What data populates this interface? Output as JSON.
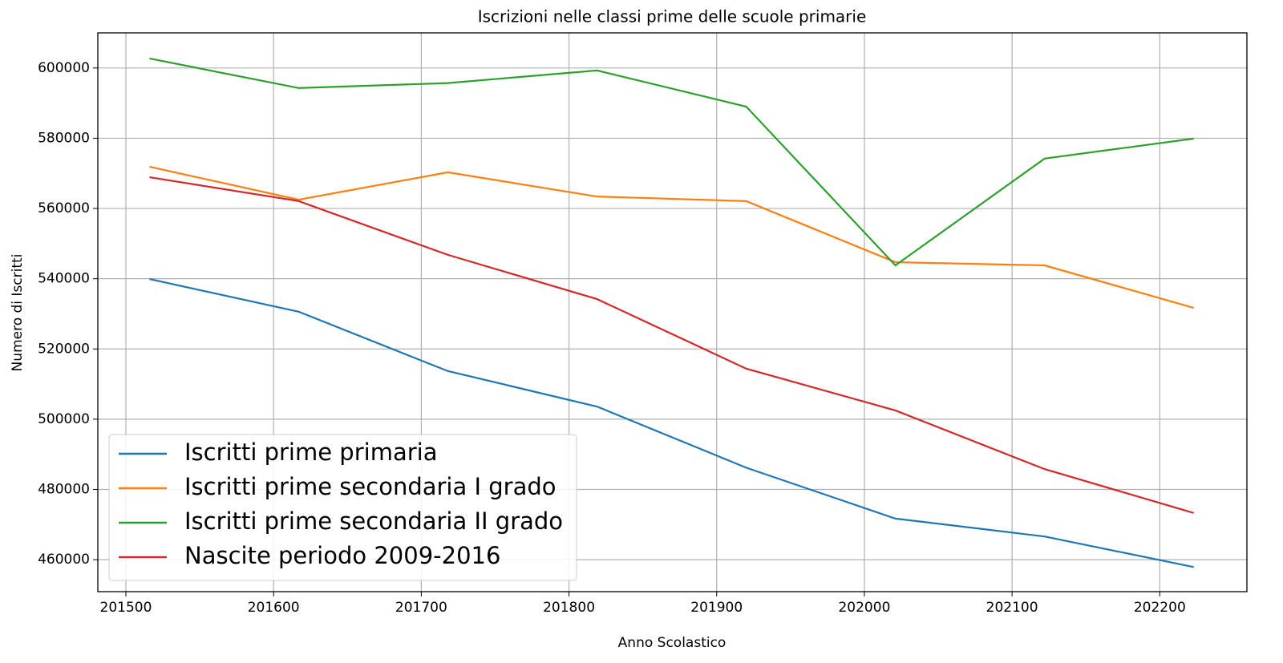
{
  "chart_data": {
    "type": "line",
    "title": "Iscrizioni nelle classi prime delle scuole primarie",
    "xlabel": "Anno Scolastico",
    "ylabel": "Numero di Iscritti",
    "x": [
      201516,
      201617,
      201718,
      201819,
      201920,
      202021,
      202122,
      202223
    ],
    "series": [
      {
        "name": "Iscritti prime primaria",
        "color": "#1f77b4",
        "values": [
          539900,
          530600,
          513700,
          503600,
          486200,
          471700,
          466600,
          457900
        ]
      },
      {
        "name": "Iscritti prime secondaria I grado",
        "color": "#ff7f0e",
        "values": [
          571900,
          562500,
          570300,
          563400,
          562100,
          544700,
          543800,
          531700
        ]
      },
      {
        "name": "Iscritti prime secondaria II grado",
        "color": "#2ca02c",
        "values": [
          602700,
          594300,
          595700,
          599300,
          589000,
          543800,
          574200,
          579900
        ]
      },
      {
        "name": "Nascite periodo 2009-2016",
        "color": "#d62728",
        "values": [
          568900,
          562100,
          546800,
          534200,
          514400,
          502500,
          485800,
          473300
        ]
      }
    ],
    "xlim": [
      201481,
      202259
    ],
    "xticks": [
      201500,
      201600,
      201700,
      201800,
      201900,
      202000,
      202100,
      202200
    ],
    "ylim": [
      450900,
      610000
    ],
    "yticks": [
      460000,
      480000,
      500000,
      520000,
      540000,
      560000,
      580000,
      600000
    ],
    "grid": true,
    "legend": "lower left"
  }
}
